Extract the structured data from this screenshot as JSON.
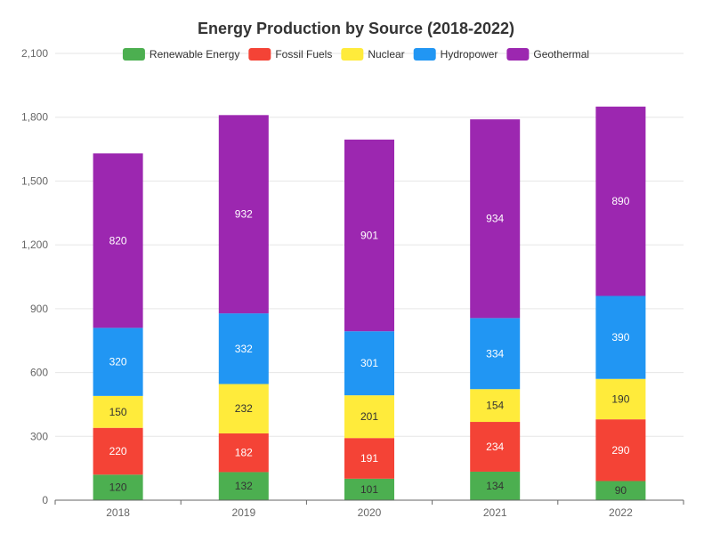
{
  "chart_data": {
    "type": "bar",
    "stacked": true,
    "title": "Energy Production by Source (2018-2022)",
    "categories": [
      "2018",
      "2019",
      "2020",
      "2021",
      "2022"
    ],
    "series": [
      {
        "name": "Renewable Energy",
        "color": "#4caf50",
        "label_color": "#333333",
        "values": [
          120,
          132,
          101,
          134,
          90
        ]
      },
      {
        "name": "Fossil Fuels",
        "color": "#f44336",
        "label_color": "#ffffff",
        "values": [
          220,
          182,
          191,
          234,
          290
        ]
      },
      {
        "name": "Nuclear",
        "color": "#ffeb3b",
        "label_color": "#333333",
        "values": [
          150,
          232,
          201,
          154,
          190
        ]
      },
      {
        "name": "Hydropower",
        "color": "#2196f3",
        "label_color": "#ffffff",
        "values": [
          320,
          332,
          301,
          334,
          390
        ]
      },
      {
        "name": "Geothermal",
        "color": "#9c27b0",
        "label_color": "#ffffff",
        "values": [
          820,
          932,
          901,
          934,
          890
        ]
      }
    ],
    "ylim": [
      0,
      2100
    ],
    "yticks": [
      0,
      300,
      600,
      900,
      1200,
      1500,
      1800,
      2100
    ],
    "ytick_labels": [
      "0",
      "300",
      "600",
      "900",
      "1,200",
      "1,500",
      "1,800",
      "2,100"
    ],
    "grid": true,
    "legend_position": "top"
  }
}
